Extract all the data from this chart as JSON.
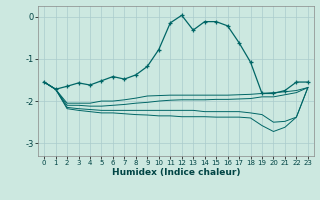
{
  "xlabel": "Humidex (Indice chaleur)",
  "background_color": "#cce8e0",
  "grid_color": "#aacccc",
  "line_color": "#006666",
  "xlim": [
    -0.5,
    23.5
  ],
  "ylim": [
    -3.3,
    0.25
  ],
  "yticks": [
    0,
    -1,
    -2,
    -3
  ],
  "xticks": [
    0,
    1,
    2,
    3,
    4,
    5,
    6,
    7,
    8,
    9,
    10,
    11,
    12,
    13,
    14,
    15,
    16,
    17,
    18,
    19,
    20,
    21,
    22,
    23
  ],
  "main_line_x": [
    0,
    1,
    2,
    3,
    4,
    5,
    6,
    7,
    8,
    9,
    10,
    11,
    12,
    13,
    14,
    15,
    16,
    17,
    18,
    19,
    20,
    21,
    22,
    23
  ],
  "main_line_y": [
    -1.55,
    -1.72,
    -1.65,
    -1.57,
    -1.62,
    -1.52,
    -1.42,
    -1.48,
    -1.38,
    -1.18,
    -0.78,
    -0.15,
    0.03,
    -0.32,
    -0.12,
    -0.12,
    -0.22,
    -0.62,
    -1.08,
    -1.82,
    -1.82,
    -1.75,
    -1.55,
    -1.55
  ],
  "line2_x": [
    0,
    1,
    2,
    3,
    4,
    5,
    6,
    7,
    8,
    9,
    10,
    11,
    12,
    13,
    14,
    15,
    16,
    17,
    18,
    19,
    20,
    21,
    22,
    23
  ],
  "line2_y": [
    -1.55,
    -1.72,
    -2.05,
    -2.05,
    -2.05,
    -2.0,
    -2.0,
    -1.97,
    -1.93,
    -1.88,
    -1.87,
    -1.86,
    -1.86,
    -1.86,
    -1.86,
    -1.86,
    -1.86,
    -1.85,
    -1.84,
    -1.82,
    -1.8,
    -1.78,
    -1.75,
    -1.68
  ],
  "line3_x": [
    0,
    1,
    2,
    3,
    4,
    5,
    6,
    7,
    8,
    9,
    10,
    11,
    12,
    13,
    14,
    15,
    16,
    17,
    18,
    19,
    20,
    21,
    22,
    23
  ],
  "line3_y": [
    -1.55,
    -1.72,
    -2.1,
    -2.1,
    -2.12,
    -2.12,
    -2.1,
    -2.08,
    -2.05,
    -2.03,
    -2.0,
    -1.98,
    -1.97,
    -1.97,
    -1.97,
    -1.96,
    -1.96,
    -1.95,
    -1.94,
    -1.9,
    -1.9,
    -1.85,
    -1.8,
    -1.68
  ],
  "line4_x": [
    0,
    1,
    2,
    3,
    4,
    5,
    6,
    7,
    8,
    9,
    10,
    11,
    12,
    13,
    14,
    15,
    16,
    17,
    18,
    19,
    20,
    21,
    22,
    23
  ],
  "line4_y": [
    -1.55,
    -1.72,
    -2.15,
    -2.18,
    -2.2,
    -2.22,
    -2.22,
    -2.22,
    -2.22,
    -2.22,
    -2.22,
    -2.22,
    -2.22,
    -2.22,
    -2.25,
    -2.25,
    -2.25,
    -2.25,
    -2.28,
    -2.32,
    -2.5,
    -2.48,
    -2.38,
    -1.68
  ],
  "line5_x": [
    0,
    1,
    2,
    3,
    4,
    5,
    6,
    7,
    8,
    9,
    10,
    11,
    12,
    13,
    14,
    15,
    16,
    17,
    18,
    19,
    20,
    21,
    22,
    23
  ],
  "line5_y": [
    -1.55,
    -1.72,
    -2.18,
    -2.22,
    -2.25,
    -2.28,
    -2.28,
    -2.3,
    -2.32,
    -2.33,
    -2.35,
    -2.35,
    -2.37,
    -2.37,
    -2.37,
    -2.38,
    -2.38,
    -2.38,
    -2.4,
    -2.58,
    -2.72,
    -2.62,
    -2.38,
    -1.68
  ]
}
